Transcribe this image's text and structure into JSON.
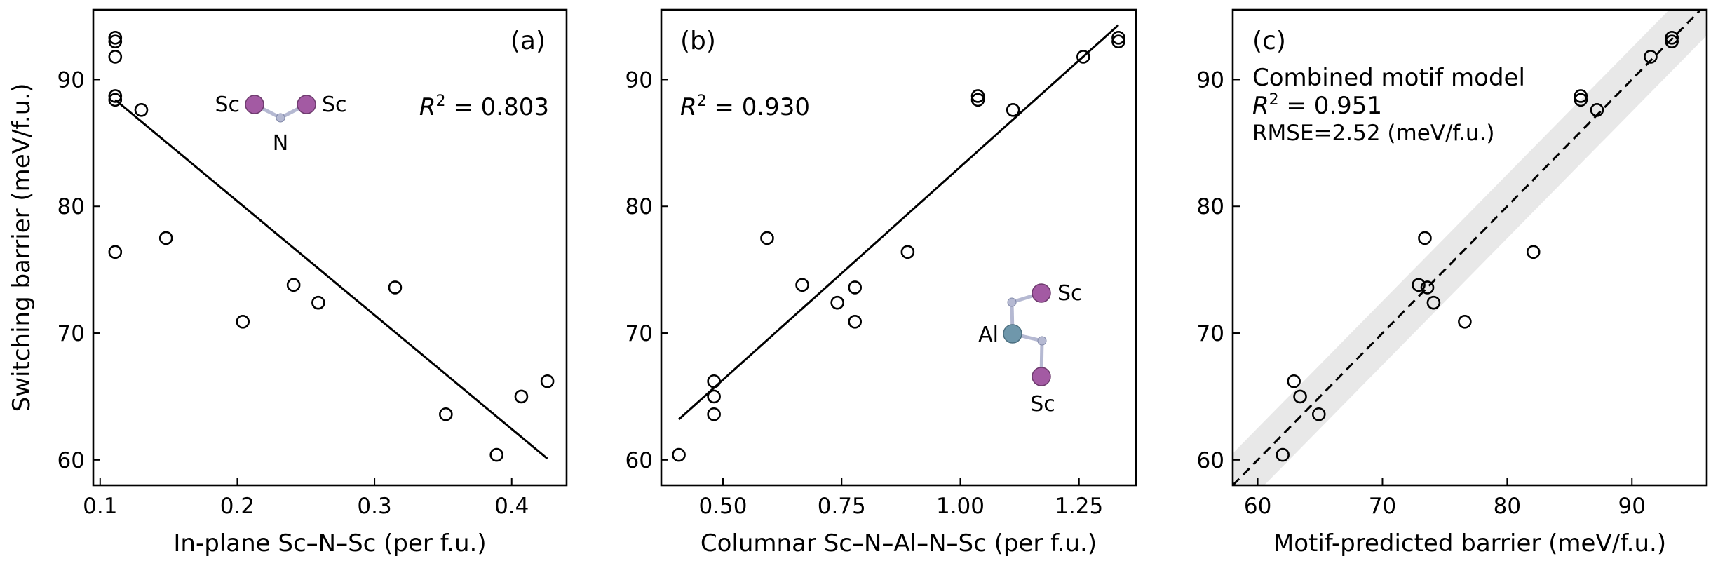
{
  "colors": {
    "axis": "#000000",
    "marker": "#000000",
    "fit_line": "#000000",
    "band": "#e8e8e8",
    "sc_atom": "#a35aa3",
    "al_atom": "#6f97ab",
    "n_atom": "#b5b9d2"
  },
  "chart_data": [
    {
      "type": "scatter",
      "panel_label": "(a)",
      "xlabel": "In-plane Sc–N–Sc (per f.u.)",
      "ylabel": "Switching barrier (meV/f.u.)",
      "xlim": [
        0.095,
        0.44
      ],
      "ylim": [
        58,
        95.5
      ],
      "xticks": [
        0.1,
        0.2,
        0.3,
        0.4
      ],
      "xtick_labels": [
        "0.1",
        "0.2",
        "0.3",
        "0.4"
      ],
      "yticks": [
        60,
        70,
        80,
        90
      ],
      "ytick_labels": [
        "60",
        "70",
        "80",
        "90"
      ],
      "r2_prefix": "R",
      "r2_sup": "2",
      "r2_value": " = 0.803",
      "fit_line": {
        "x": [
          0.111,
          0.426
        ],
        "y": [
          88.4,
          60.1
        ]
      },
      "points": [
        {
          "x": 0.111,
          "y": 93.0
        },
        {
          "x": 0.111,
          "y": 93.3
        },
        {
          "x": 0.111,
          "y": 91.8
        },
        {
          "x": 0.111,
          "y": 88.4
        },
        {
          "x": 0.111,
          "y": 88.7
        },
        {
          "x": 0.111,
          "y": 76.4
        },
        {
          "x": 0.13,
          "y": 87.6
        },
        {
          "x": 0.148,
          "y": 77.5
        },
        {
          "x": 0.204,
          "y": 70.9
        },
        {
          "x": 0.241,
          "y": 73.8
        },
        {
          "x": 0.259,
          "y": 72.4
        },
        {
          "x": 0.315,
          "y": 73.6
        },
        {
          "x": 0.352,
          "y": 63.6
        },
        {
          "x": 0.389,
          "y": 60.4
        },
        {
          "x": 0.407,
          "y": 65.0
        },
        {
          "x": 0.426,
          "y": 66.2
        }
      ],
      "motif_labels": [
        "Sc",
        "Sc",
        "N"
      ]
    },
    {
      "type": "scatter",
      "panel_label": "(b)",
      "xlabel": "Columnar Sc–N–Al–N–Sc (per f.u.)",
      "ylabel": "",
      "xlim": [
        0.37,
        1.37
      ],
      "ylim": [
        58,
        95.5
      ],
      "xticks": [
        0.5,
        0.75,
        1.0,
        1.25
      ],
      "xtick_labels": [
        "0.50",
        "0.75",
        "1.00",
        "1.25"
      ],
      "yticks": [
        60,
        70,
        80,
        90
      ],
      "ytick_labels": [
        "60",
        "70",
        "80",
        "90"
      ],
      "r2_prefix": "R",
      "r2_sup": "2",
      "r2_value": " = 0.930",
      "fit_line": {
        "x": [
          0.407,
          1.333
        ],
        "y": [
          63.2,
          94.3
        ]
      },
      "points": [
        {
          "x": 0.407,
          "y": 60.4
        },
        {
          "x": 0.481,
          "y": 63.6
        },
        {
          "x": 0.481,
          "y": 65.0
        },
        {
          "x": 0.481,
          "y": 66.2
        },
        {
          "x": 0.593,
          "y": 77.5
        },
        {
          "x": 0.667,
          "y": 73.8
        },
        {
          "x": 0.741,
          "y": 72.4
        },
        {
          "x": 0.778,
          "y": 73.6
        },
        {
          "x": 0.778,
          "y": 70.9
        },
        {
          "x": 0.889,
          "y": 76.4
        },
        {
          "x": 1.037,
          "y": 88.4
        },
        {
          "x": 1.037,
          "y": 88.7
        },
        {
          "x": 1.111,
          "y": 87.6
        },
        {
          "x": 1.259,
          "y": 91.8
        },
        {
          "x": 1.333,
          "y": 93.0
        },
        {
          "x": 1.333,
          "y": 93.3
        }
      ],
      "motif_labels": [
        "Sc",
        "Al",
        "Sc"
      ]
    },
    {
      "type": "scatter",
      "panel_label": "(c)",
      "xlabel": "Motif-predicted barrier (meV/f.u.)",
      "ylabel": "",
      "xlim": [
        58,
        96
      ],
      "ylim": [
        58,
        95.5
      ],
      "xticks": [
        60,
        70,
        80,
        90
      ],
      "xtick_labels": [
        "60",
        "70",
        "80",
        "90"
      ],
      "yticks": [
        60,
        70,
        80,
        90
      ],
      "ytick_labels": [
        "60",
        "70",
        "80",
        "90"
      ],
      "annotation_title": "Combined motif model",
      "r2_prefix": "R",
      "r2_sup": "2",
      "r2_value": " = 0.951",
      "rmse_text": "RMSE=2.52 (meV/f.u.)",
      "rmse_band": 2.52,
      "diagonal": {
        "x": [
          58,
          96
        ],
        "y": [
          58,
          96
        ]
      },
      "points": [
        {
          "x": 62.0,
          "y": 60.4
        },
        {
          "x": 62.9,
          "y": 66.2
        },
        {
          "x": 63.4,
          "y": 65.0
        },
        {
          "x": 64.9,
          "y": 63.6
        },
        {
          "x": 72.9,
          "y": 73.8
        },
        {
          "x": 73.4,
          "y": 77.5
        },
        {
          "x": 73.6,
          "y": 73.6
        },
        {
          "x": 74.1,
          "y": 72.4
        },
        {
          "x": 76.6,
          "y": 70.9
        },
        {
          "x": 82.1,
          "y": 76.4
        },
        {
          "x": 85.9,
          "y": 88.4
        },
        {
          "x": 85.9,
          "y": 88.7
        },
        {
          "x": 87.2,
          "y": 87.6
        },
        {
          "x": 91.5,
          "y": 91.8
        },
        {
          "x": 93.2,
          "y": 93.0
        },
        {
          "x": 93.2,
          "y": 93.3
        }
      ]
    }
  ]
}
